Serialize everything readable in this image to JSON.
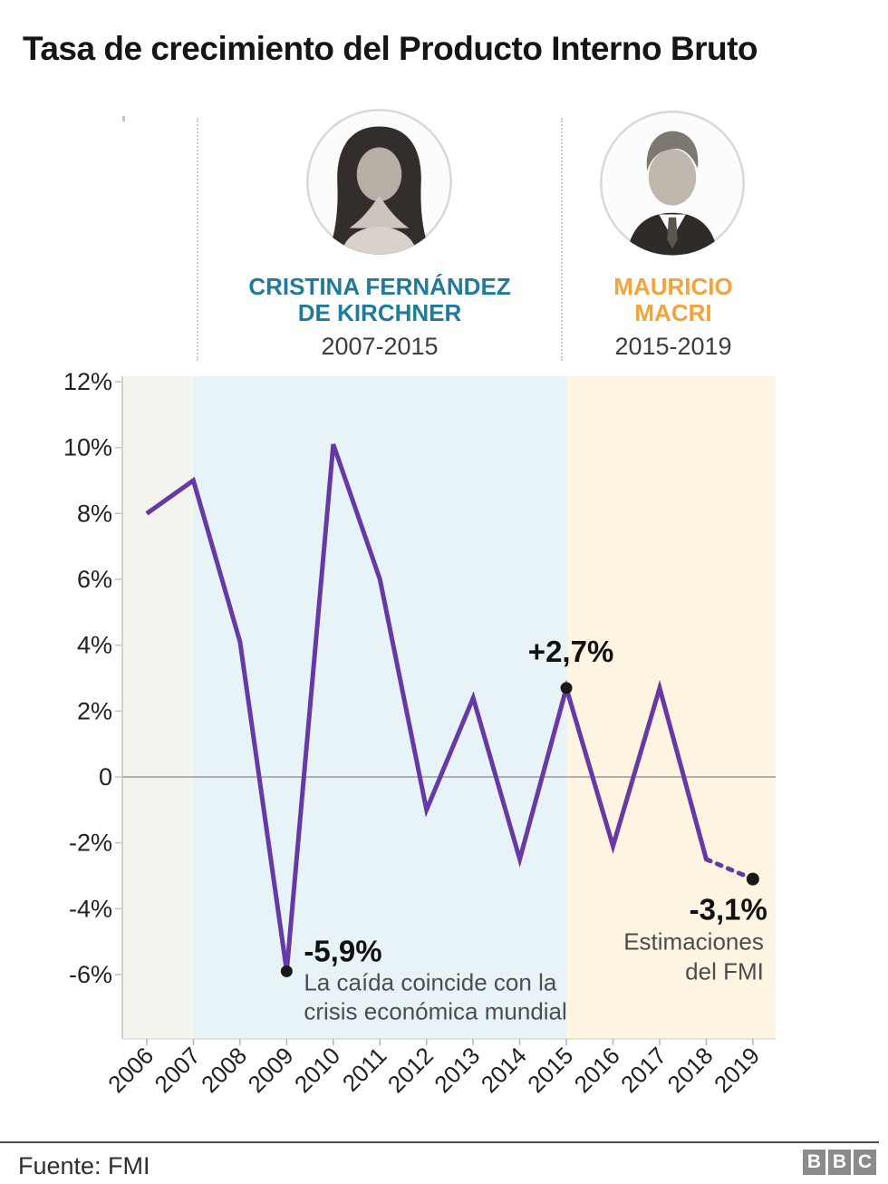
{
  "page": {
    "title": "Tasa de crecimiento del Producto Interno Bruto"
  },
  "presidents": [
    {
      "name_lines": [
        "CRISTINA FERNÁNDEZ",
        "DE KIRCHNER"
      ],
      "term": "2007-2015",
      "accent_color": "#1f7a9b",
      "photo": "cristina-fernandez-de-kirchner-portrait"
    },
    {
      "name_lines": [
        "MAURICIO",
        "MACRI"
      ],
      "term": "2015-2019",
      "accent_color": "#f2a43a",
      "photo": "mauricio-macri-portrait"
    }
  ],
  "chart_data": {
    "type": "line",
    "title": "Tasa de crecimiento del Producto Interno Bruto",
    "series_name": "Tasa de crecimiento del PIB (%)",
    "x": [
      2006,
      2007,
      2008,
      2009,
      2010,
      2011,
      2012,
      2013,
      2014,
      2015,
      2016,
      2017,
      2018,
      2019
    ],
    "values": [
      8.0,
      9.0,
      4.1,
      -5.9,
      10.1,
      6.0,
      -1.0,
      2.4,
      -2.5,
      2.7,
      -2.1,
      2.7,
      -2.5,
      -3.1
    ],
    "ylim": [
      -8,
      12.3
    ],
    "grid": false,
    "y_ticks": [
      {
        "value": 12,
        "label": "12%"
      },
      {
        "value": 10,
        "label": "10%"
      },
      {
        "value": 8,
        "label": "8%"
      },
      {
        "value": 6,
        "label": "6%"
      },
      {
        "value": 4,
        "label": "4%"
      },
      {
        "value": 2,
        "label": "2%"
      },
      {
        "value": 0,
        "label": "0"
      },
      {
        "value": -2,
        "label": "-2%"
      },
      {
        "value": -4,
        "label": "-4%"
      },
      {
        "value": -6,
        "label": "-6%"
      }
    ],
    "estimated_segment_years": [
      2018,
      2019
    ],
    "line_color": "#6639a4",
    "dot_color": "#1a1a1a",
    "zero_line_color": "#9a9a9a",
    "axis_color": "#c4c4c4",
    "tick_label_color": "#222222",
    "note_text_color": "#4d4d4d",
    "bands": [
      {
        "name": "pre-kirchner",
        "from_year": null,
        "to_year": 2007,
        "color": "#f4f4ef"
      },
      {
        "name": "kirchner-term",
        "from_year": 2007,
        "to_year": 2015,
        "color": "#e8f3f8"
      },
      {
        "name": "macri-term",
        "from_year": 2015,
        "to_year": null,
        "color": "#fdf4e1"
      }
    ],
    "annotations": [
      {
        "year": 2015,
        "value": 2.7,
        "label": "+2,7%",
        "note_lines": [],
        "dot": true,
        "placement": "above-dot"
      },
      {
        "year": 2009,
        "value": -5.9,
        "label": "-5,9%",
        "note_lines": [
          "La caída coincide con la",
          "crisis económica mundial"
        ],
        "dot": true,
        "placement": "right-of-dot"
      },
      {
        "year": 2019,
        "value": -3.1,
        "label": "-3,1%",
        "note_lines": [
          "Estimaciones",
          "del FMI"
        ],
        "dot": true,
        "placement": "below-right-aligned"
      }
    ]
  },
  "footer": {
    "source": "Fuente: FMI",
    "logo_letters": [
      "B",
      "B",
      "C"
    ]
  }
}
